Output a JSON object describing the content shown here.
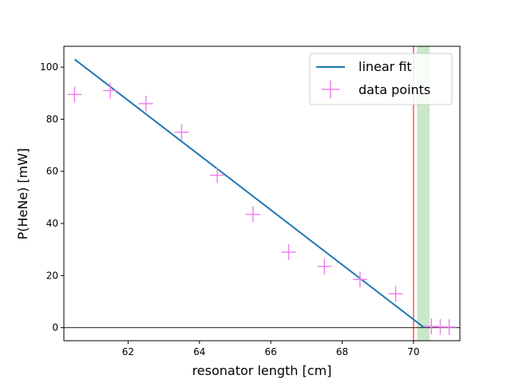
{
  "chart_data": {
    "type": "scatter",
    "title": "",
    "xlabel": "resonator length [cm]",
    "ylabel": "P(HeNe) [mW]",
    "xlim": [
      60.2,
      71.3
    ],
    "ylim": [
      -5,
      108
    ],
    "xticks": [
      62,
      64,
      66,
      68,
      70
    ],
    "yticks": [
      0,
      20,
      40,
      60,
      80,
      100
    ],
    "grid": false,
    "legend_position": "top-right",
    "series": [
      {
        "name": "linear fit",
        "kind": "line",
        "color": "#1f77b4",
        "x": [
          60.5,
          70.3
        ],
        "y": [
          103,
          0
        ]
      },
      {
        "name": "data points",
        "kind": "errorbar-markers",
        "color": "#ee82ee",
        "x": [
          60.5,
          61.5,
          62.5,
          63.5,
          64.5,
          65.5,
          66.5,
          67.5,
          68.5,
          69.5,
          70.5,
          70.75,
          71.0
        ],
        "y": [
          89.5,
          91,
          86,
          75,
          58.5,
          43.5,
          29,
          23.5,
          18.5,
          13,
          0.5,
          0.3,
          0.2
        ],
        "xerr": 0.2,
        "yerr": 3
      }
    ],
    "annotations": {
      "vertical_line": {
        "x": 70.0,
        "color": "#ff0000"
      },
      "shaded_band": {
        "x": [
          70.1,
          70.45
        ],
        "color": "#2ca02c"
      },
      "horizontal_line": {
        "y": 0,
        "color": "#000000"
      }
    }
  }
}
